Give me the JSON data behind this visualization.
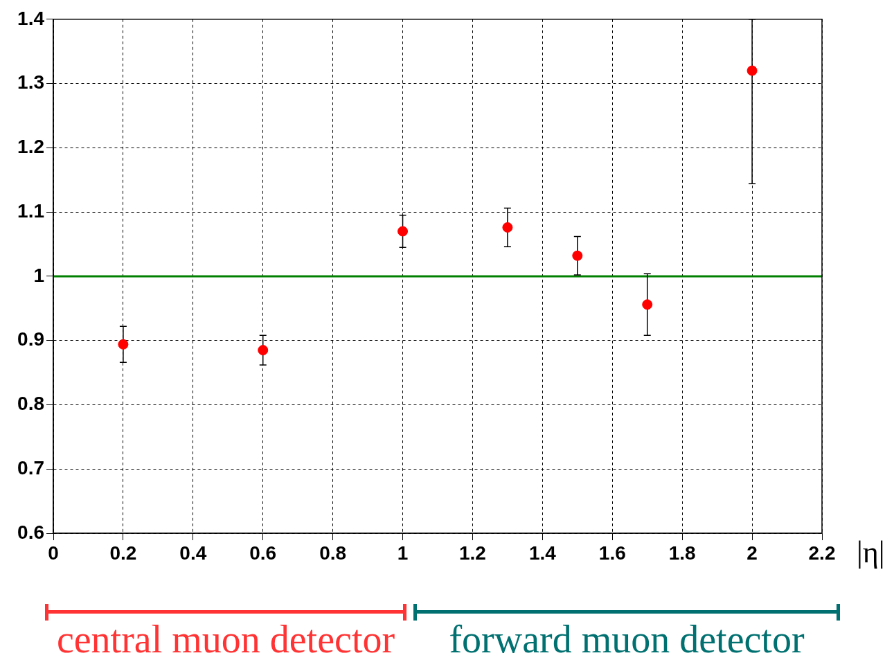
{
  "chart_data": {
    "type": "scatter",
    "xlabel": "|η|",
    "x": [
      0.2,
      0.6,
      1.0,
      1.3,
      1.5,
      1.7,
      2.0
    ],
    "series": [
      {
        "color": "#ff0000",
        "values": [
          0.894,
          0.885,
          1.07,
          1.076,
          1.032,
          0.956,
          1.32
        ],
        "errors": [
          0.028,
          0.023,
          0.025,
          0.03,
          0.03,
          0.048,
          [
            1.144,
            1.4
          ]
        ]
      }
    ],
    "marker": "circle",
    "xlim": [
      0,
      2.2
    ],
    "xticks": [
      0,
      0.2,
      0.4,
      0.6,
      0.8,
      1,
      1.2,
      1.4,
      1.6,
      1.8,
      2,
      2.2
    ],
    "ylim": [
      0.6,
      1.4
    ],
    "yticks": [
      0.6,
      0.7,
      0.8,
      0.9,
      1,
      1.1,
      1.2,
      1.3,
      1.4
    ],
    "grid": true,
    "ref_lines": [
      {
        "axis": "y",
        "value": 1,
        "color": "#008000"
      }
    ],
    "annotations": [
      "central muon detector",
      "forward muon detector"
    ]
  }
}
